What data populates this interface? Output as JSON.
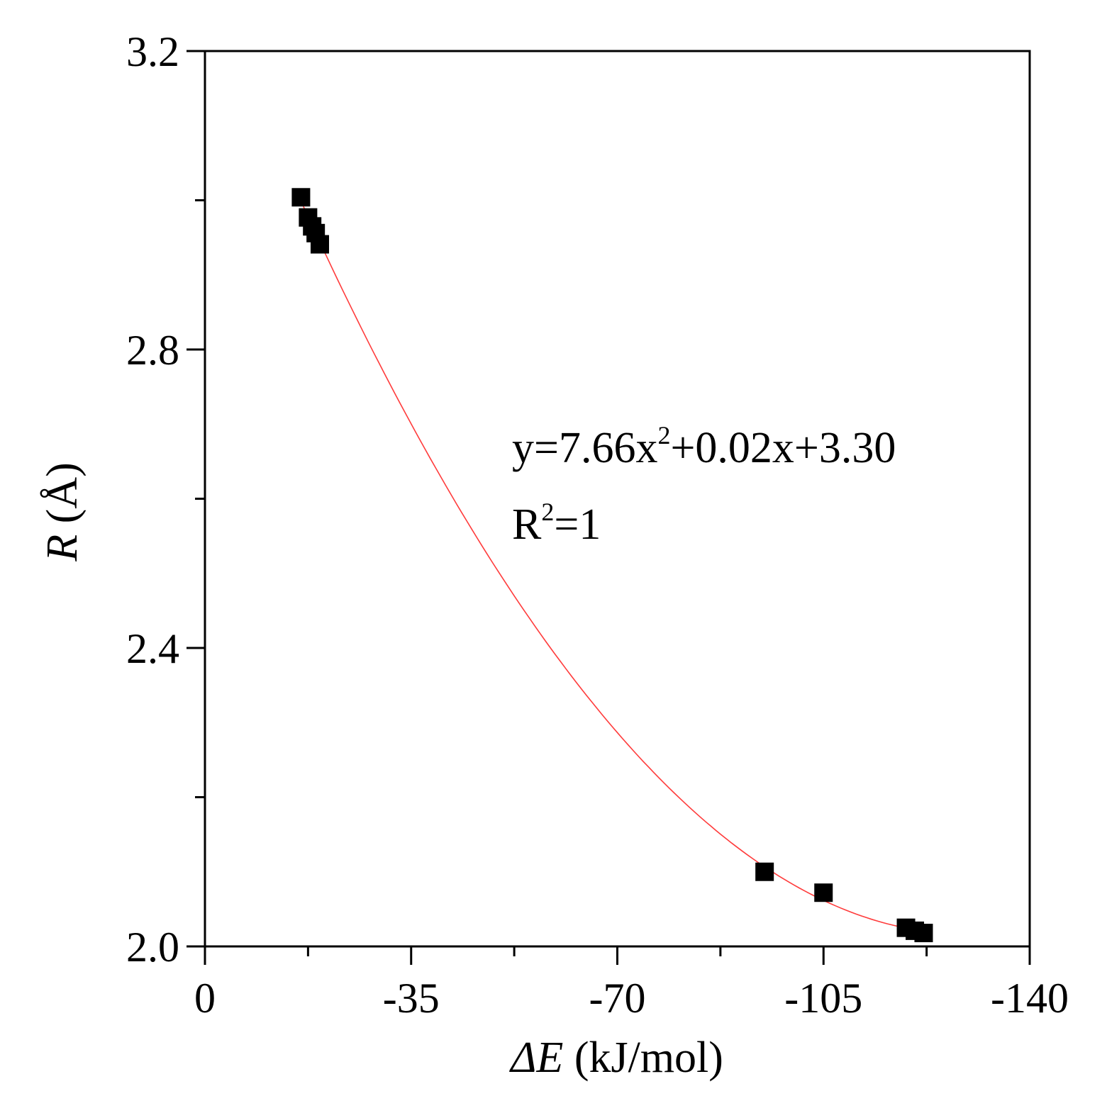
{
  "chart_data": {
    "type": "scatter",
    "xlabel_symbol": "ΔE",
    "xlabel_unit": "(kJ/mol)",
    "ylabel_symbol": "R",
    "ylabel_unit": "(Å)",
    "xlim": [
      0,
      -140
    ],
    "ylim": [
      2.0,
      3.2
    ],
    "x_ticks": [
      0,
      -35,
      -70,
      -105,
      -140
    ],
    "x_tick_labels": [
      "0",
      "-35",
      "-70",
      "-105",
      "-140"
    ],
    "y_ticks": [
      2.0,
      2.4,
      2.8,
      3.2
    ],
    "y_tick_labels": [
      "2.0",
      "2.4",
      "2.8",
      "3.2"
    ],
    "series": [
      {
        "marker": "square",
        "color": "#000000",
        "x": [
          -16.3,
          -17.5,
          -18.2,
          -18.8,
          -19.5,
          -95.0,
          -105.0,
          -119.0,
          -120.5,
          -122.0
        ],
        "y": [
          3.004,
          2.977,
          2.965,
          2.956,
          2.941,
          2.1,
          2.072,
          2.025,
          2.021,
          2.018
        ]
      }
    ],
    "fit": {
      "color": "#ff3b3b",
      "x_start": -16.3,
      "x_end": -122.0,
      "equation_prefix": "y=7.66x",
      "equation_sup": "2",
      "equation_suffix": "+0.02x+3.30",
      "r2_prefix": "R",
      "r2_sup": "2",
      "r2_suffix": "=1"
    },
    "grid": false,
    "legend": "none"
  }
}
